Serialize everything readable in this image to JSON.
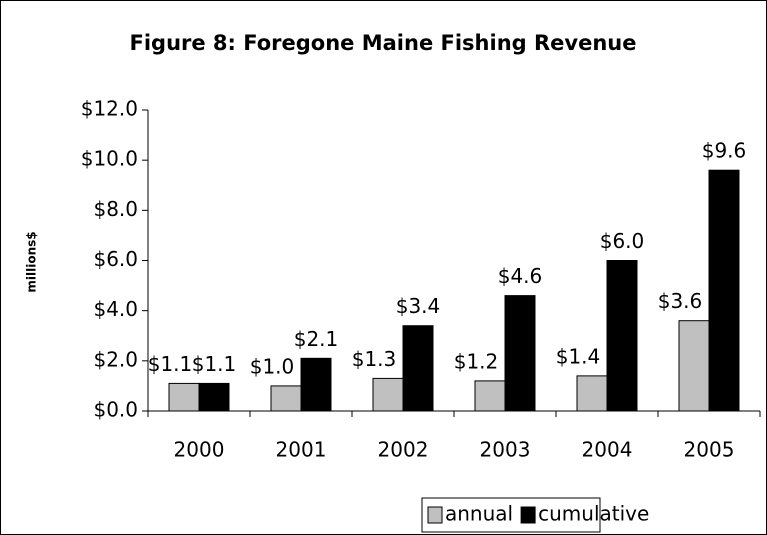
{
  "chart_data": {
    "type": "bar",
    "title": "Figure 8: Foregone Maine Fishing Revenue",
    "y_label": "millions$",
    "categories": [
      "2000",
      "2001",
      "2002",
      "2003",
      "2004",
      "2005"
    ],
    "series": [
      {
        "name": "annual",
        "color": "#c0c0c0",
        "values": [
          1.1,
          1.0,
          1.3,
          1.2,
          1.4,
          3.6
        ],
        "value_labels": [
          "$1.1",
          "$1.0",
          "$1.3",
          "$1.2",
          "$1.4",
          "$3.6"
        ]
      },
      {
        "name": "cumulative",
        "color": "#000000",
        "values": [
          1.1,
          2.1,
          3.4,
          4.6,
          6.0,
          9.6
        ],
        "value_labels": [
          "$1.1",
          "$2.1",
          "$3.4",
          "$4.6",
          "$6.0",
          "$9.6"
        ]
      }
    ],
    "ylim": [
      0,
      12
    ],
    "yticks": [
      {
        "value": 0,
        "label": "$0.0"
      },
      {
        "value": 2,
        "label": "$2.0"
      },
      {
        "value": 4,
        "label": "$4.0"
      },
      {
        "value": 6,
        "label": "$6.0"
      },
      {
        "value": 8,
        "label": "$8.0"
      },
      {
        "value": 10,
        "label": "$10.0"
      },
      {
        "value": 12,
        "label": "$12.0"
      }
    ],
    "legend": "bottom"
  }
}
